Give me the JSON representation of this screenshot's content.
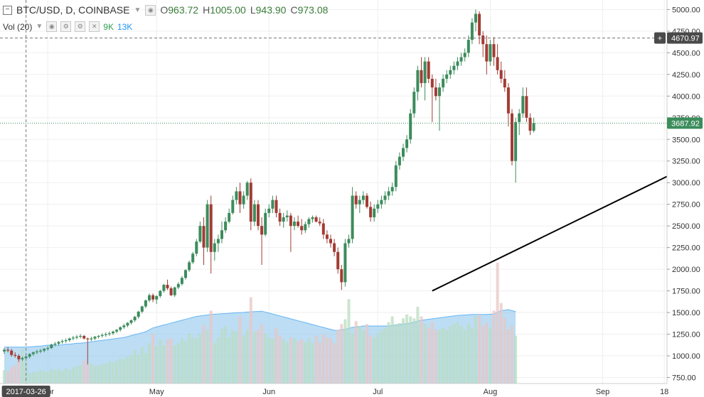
{
  "header": {
    "symbol": "BTC/USD, D, COINBASE",
    "open_label": "O",
    "open": "963.72",
    "high_label": "H",
    "high": "1005.00",
    "low_label": "L",
    "low": "943.90",
    "close_label": "C",
    "close": "973.08"
  },
  "volume_legend": {
    "label": "Vol (20)",
    "value1": "9K",
    "value2": "13K"
  },
  "price_badges": {
    "crosshair": "4670.97",
    "last": "3687.92"
  },
  "date_badge": "2017-03-26",
  "colors": {
    "up": "#3c8c5c",
    "down": "#a23c34",
    "trend": "#000000",
    "vol_up": "#b9dcc2",
    "vol_down": "#e9c6c4",
    "vol_ma_fill": "#9fcfee",
    "vol_ma_line": "#64b5f6",
    "last_price": "#3c8c5c",
    "crosshair": "#777777"
  },
  "chart_data": {
    "type": "candlestick",
    "title": "BTC/USD, D, COINBASE",
    "x_labels": [
      "Apr",
      "May",
      "Jun",
      "Jul",
      "Aug",
      "Sep",
      "18"
    ],
    "y_ticks": [
      750,
      1000,
      1250,
      1500,
      1750,
      2000,
      2250,
      2500,
      2750,
      3000,
      3250,
      3500,
      3750,
      4000,
      4250,
      4500,
      4750,
      5000
    ],
    "y_tick_labels": [
      "750.00",
      "1000.00",
      "1250.00",
      "1500.00",
      "1750.00",
      "2000.00",
      "2250.00",
      "2500.00",
      "2750.00",
      "3000.00",
      "3250.00",
      "3500.00",
      "3750.00",
      "4000.00",
      "4250.00",
      "4500.00",
      "4750.00",
      "5000.00"
    ],
    "ylim": [
      680,
      5110
    ],
    "candle_start_date": "2017-03-20",
    "ohlc": [
      [
        1050,
        1090,
        1020,
        1070
      ],
      [
        1070,
        1100,
        1040,
        1060
      ],
      [
        1060,
        1080,
        990,
        1010
      ],
      [
        1010,
        1040,
        980,
        1000
      ],
      [
        1000,
        1020,
        930,
        960
      ],
      [
        960,
        990,
        940,
        973
      ],
      [
        973,
        1000,
        960,
        990
      ],
      [
        990,
        1030,
        970,
        1020
      ],
      [
        1020,
        1050,
        1000,
        1040
      ],
      [
        1040,
        1070,
        1020,
        1050
      ],
      [
        1050,
        1080,
        1030,
        1060
      ],
      [
        1060,
        1090,
        1040,
        1080
      ],
      [
        1080,
        1110,
        1060,
        1090
      ],
      [
        1090,
        1140,
        1080,
        1130
      ],
      [
        1130,
        1160,
        1110,
        1140
      ],
      [
        1140,
        1170,
        1120,
        1160
      ],
      [
        1160,
        1190,
        1140,
        1170
      ],
      [
        1170,
        1200,
        1150,
        1180
      ],
      [
        1180,
        1210,
        1160,
        1200
      ],
      [
        1200,
        1230,
        1180,
        1210
      ],
      [
        1210,
        1240,
        1190,
        1220
      ],
      [
        1220,
        1250,
        1200,
        1230
      ],
      [
        1230,
        1240,
        1190,
        1200
      ],
      [
        1200,
        1210,
        900,
        1190
      ],
      [
        1190,
        1220,
        1170,
        1200
      ],
      [
        1200,
        1230,
        1180,
        1220
      ],
      [
        1220,
        1240,
        1200,
        1230
      ],
      [
        1230,
        1260,
        1210,
        1240
      ],
      [
        1240,
        1270,
        1220,
        1250
      ],
      [
        1250,
        1280,
        1230,
        1260
      ],
      [
        1260,
        1290,
        1240,
        1280
      ],
      [
        1280,
        1310,
        1260,
        1300
      ],
      [
        1300,
        1340,
        1280,
        1330
      ],
      [
        1330,
        1370,
        1310,
        1350
      ],
      [
        1350,
        1390,
        1330,
        1380
      ],
      [
        1380,
        1420,
        1360,
        1410
      ],
      [
        1410,
        1460,
        1390,
        1450
      ],
      [
        1450,
        1520,
        1430,
        1510
      ],
      [
        1510,
        1580,
        1490,
        1570
      ],
      [
        1570,
        1650,
        1550,
        1640
      ],
      [
        1640,
        1720,
        1620,
        1700
      ],
      [
        1700,
        1720,
        1620,
        1650
      ],
      [
        1650,
        1700,
        1600,
        1690
      ],
      [
        1690,
        1760,
        1670,
        1750
      ],
      [
        1750,
        1830,
        1730,
        1820
      ],
      [
        1820,
        1880,
        1760,
        1780
      ],
      [
        1780,
        1800,
        1690,
        1700
      ],
      [
        1700,
        1800,
        1680,
        1790
      ],
      [
        1790,
        1850,
        1770,
        1830
      ],
      [
        1830,
        1920,
        1810,
        1900
      ],
      [
        1900,
        2000,
        1880,
        1990
      ],
      [
        1990,
        2100,
        1970,
        2080
      ],
      [
        2080,
        2200,
        2060,
        2180
      ],
      [
        2180,
        2350,
        2150,
        2320
      ],
      [
        2320,
        2550,
        2300,
        2500
      ],
      [
        2500,
        2600,
        2050,
        2250
      ],
      [
        2250,
        2800,
        2200,
        2750
      ],
      [
        2750,
        2850,
        1950,
        2200
      ],
      [
        2200,
        2350,
        2100,
        2300
      ],
      [
        2300,
        2400,
        2200,
        2350
      ],
      [
        2350,
        2550,
        2300,
        2450
      ],
      [
        2450,
        2600,
        2420,
        2550
      ],
      [
        2550,
        2700,
        2530,
        2650
      ],
      [
        2650,
        2850,
        2630,
        2800
      ],
      [
        2800,
        2950,
        2750,
        2900
      ],
      [
        2900,
        3000,
        2650,
        2750
      ],
      [
        2750,
        2900,
        2700,
        2850
      ],
      [
        2850,
        3020,
        2800,
        3000
      ],
      [
        3000,
        3050,
        2450,
        2550
      ],
      [
        2550,
        2800,
        2500,
        2750
      ],
      [
        2750,
        2800,
        2450,
        2500
      ],
      [
        2500,
        2600,
        2050,
        2400
      ],
      [
        2400,
        2700,
        2380,
        2650
      ],
      [
        2650,
        2750,
        2600,
        2700
      ],
      [
        2700,
        2850,
        2650,
        2800
      ],
      [
        2800,
        2850,
        2600,
        2650
      ],
      [
        2650,
        2700,
        2500,
        2550
      ],
      [
        2550,
        2650,
        2480,
        2600
      ],
      [
        2600,
        2680,
        2550,
        2620
      ],
      [
        2620,
        2650,
        2200,
        2500
      ],
      [
        2500,
        2600,
        2450,
        2550
      ],
      [
        2550,
        2620,
        2480,
        2500
      ],
      [
        2500,
        2580,
        2400,
        2450
      ],
      [
        2450,
        2550,
        2420,
        2520
      ],
      [
        2520,
        2600,
        2480,
        2580
      ],
      [
        2580,
        2620,
        2540,
        2600
      ],
      [
        2600,
        2620,
        2540,
        2550
      ],
      [
        2550,
        2600,
        2500,
        2530
      ],
      [
        2530,
        2580,
        2350,
        2400
      ],
      [
        2400,
        2450,
        2300,
        2350
      ],
      [
        2350,
        2400,
        2250,
        2300
      ],
      [
        2300,
        2350,
        2150,
        2200
      ],
      [
        2200,
        2250,
        1950,
        2000
      ],
      [
        2000,
        2050,
        1760,
        1850
      ],
      [
        1850,
        2350,
        1800,
        2300
      ],
      [
        2300,
        2400,
        2250,
        2350
      ],
      [
        2350,
        2950,
        2300,
        2850
      ],
      [
        2850,
        2900,
        2700,
        2750
      ],
      [
        2750,
        2850,
        2650,
        2800
      ],
      [
        2800,
        2900,
        2750,
        2850
      ],
      [
        2850,
        2880,
        2700,
        2720
      ],
      [
        2720,
        2780,
        2550,
        2600
      ],
      [
        2600,
        2750,
        2550,
        2700
      ],
      [
        2700,
        2800,
        2650,
        2750
      ],
      [
        2750,
        2850,
        2700,
        2800
      ],
      [
        2800,
        2900,
        2750,
        2850
      ],
      [
        2850,
        2950,
        2800,
        2900
      ],
      [
        2900,
        3000,
        2850,
        2950
      ],
      [
        2950,
        3250,
        2900,
        3200
      ],
      [
        3200,
        3350,
        3150,
        3300
      ],
      [
        3300,
        3450,
        3250,
        3400
      ],
      [
        3400,
        3550,
        3350,
        3500
      ],
      [
        3500,
        3850,
        3450,
        3800
      ],
      [
        3800,
        4100,
        3750,
        4050
      ],
      [
        4050,
        4350,
        3950,
        4300
      ],
      [
        4300,
        4450,
        4100,
        4150
      ],
      [
        4150,
        4450,
        3950,
        4400
      ],
      [
        4400,
        4450,
        4150,
        4200
      ],
      [
        4200,
        4250,
        3700,
        4100
      ],
      [
        4100,
        4200,
        3950,
        4000
      ],
      [
        4000,
        4150,
        3600,
        4100
      ],
      [
        4100,
        4250,
        4050,
        4200
      ],
      [
        4200,
        4300,
        4150,
        4250
      ],
      [
        4250,
        4350,
        4200,
        4300
      ],
      [
        4300,
        4400,
        4250,
        4350
      ],
      [
        4350,
        4450,
        4300,
        4400
      ],
      [
        4400,
        4500,
        4350,
        4450
      ],
      [
        4450,
        4550,
        4400,
        4500
      ],
      [
        4500,
        4700,
        4450,
        4650
      ],
      [
        4650,
        4900,
        4600,
        4850
      ],
      [
        4850,
        5000,
        4750,
        4950
      ],
      [
        4950,
        4980,
        4600,
        4700
      ],
      [
        4700,
        4750,
        4450,
        4600
      ],
      [
        4600,
        4700,
        4250,
        4400
      ],
      [
        4400,
        4650,
        4350,
        4600
      ],
      [
        4600,
        4680,
        4350,
        4450
      ],
      [
        4450,
        4600,
        4250,
        4300
      ],
      [
        4300,
        4400,
        4150,
        4200
      ],
      [
        4200,
        4300,
        4050,
        4100
      ],
      [
        4100,
        4150,
        3650,
        3800
      ],
      [
        3800,
        3850,
        3200,
        3250
      ],
      [
        3250,
        3750,
        3000,
        3700
      ],
      [
        3700,
        3850,
        3550,
        3800
      ],
      [
        3800,
        4100,
        3750,
        4000
      ],
      [
        4000,
        4100,
        3700,
        3750
      ],
      [
        3750,
        3800,
        3550,
        3600
      ],
      [
        3600,
        3750,
        3580,
        3688
      ]
    ],
    "volume": [
      140,
      130,
      170,
      190,
      240,
      360,
      230,
      110,
      120,
      120,
      140,
      130,
      125,
      150,
      140,
      150,
      130,
      160,
      140,
      170,
      180,
      190,
      240,
      200,
      210,
      180,
      190,
      200,
      210,
      230,
      220,
      240,
      260,
      250,
      280,
      300,
      350,
      300,
      380,
      320,
      420,
      520,
      390,
      460,
      400,
      460,
      470,
      400,
      420,
      470,
      440,
      520,
      480,
      470,
      520,
      610,
      560,
      760,
      420,
      480,
      570,
      600,
      480,
      560,
      540,
      700,
      500,
      560,
      900,
      540,
      560,
      620,
      520,
      480,
      470,
      580,
      500,
      460,
      430,
      480,
      470,
      440,
      460,
      430,
      470,
      420,
      500,
      430,
      520,
      480,
      470,
      420,
      560,
      620,
      670,
      880,
      520,
      650,
      600,
      560,
      620,
      500,
      480,
      520,
      560,
      580,
      640,
      700,
      620,
      630,
      680,
      720,
      700,
      680,
      800,
      700,
      620,
      580,
      640,
      560,
      560,
      580,
      560,
      600,
      620,
      640,
      600,
      560,
      620,
      580,
      700,
      720,
      600,
      640,
      580,
      760,
      1260,
      840,
      680,
      560,
      600,
      500
    ],
    "volume_ma20": [
      380,
      380,
      380,
      380,
      380,
      380,
      380,
      382,
      385,
      388,
      390,
      395,
      400,
      400,
      400,
      400,
      405,
      410,
      410,
      415,
      420,
      420,
      425,
      430,
      435,
      440,
      445,
      450,
      455,
      460,
      465,
      470,
      475,
      480,
      490,
      500,
      510,
      520,
      530,
      540,
      560,
      580,
      590,
      600,
      610,
      620,
      630,
      640,
      650,
      660,
      670,
      680,
      690,
      700,
      705,
      710,
      715,
      720,
      722,
      725,
      728,
      730,
      732,
      735,
      738,
      740,
      742,
      745,
      748,
      750,
      752,
      755,
      745,
      735,
      725,
      715,
      705,
      695,
      685,
      675,
      665,
      655,
      645,
      635,
      625,
      615,
      605,
      595,
      585,
      575,
      565,
      555,
      555,
      560,
      565,
      575,
      585,
      590,
      595,
      600,
      600,
      600,
      600,
      600,
      600,
      600,
      600,
      605,
      610,
      615,
      620,
      625,
      630,
      640,
      650,
      660,
      665,
      670,
      675,
      680,
      685,
      690,
      695,
      700,
      705,
      710,
      712,
      715,
      718,
      720,
      720,
      720,
      720,
      720,
      722,
      724,
      740,
      760,
      765,
      770,
      760,
      750
    ],
    "volume_axis_max": 4000,
    "trendline": [
      {
        "date": "2017-07-16",
        "value": 1750
      },
      {
        "date": "2017-09-26",
        "value": 3220
      }
    ],
    "crosshair_price": 4670.97,
    "crosshair_date": "2017-03-26",
    "last_price": 3687.92,
    "grid": true
  }
}
